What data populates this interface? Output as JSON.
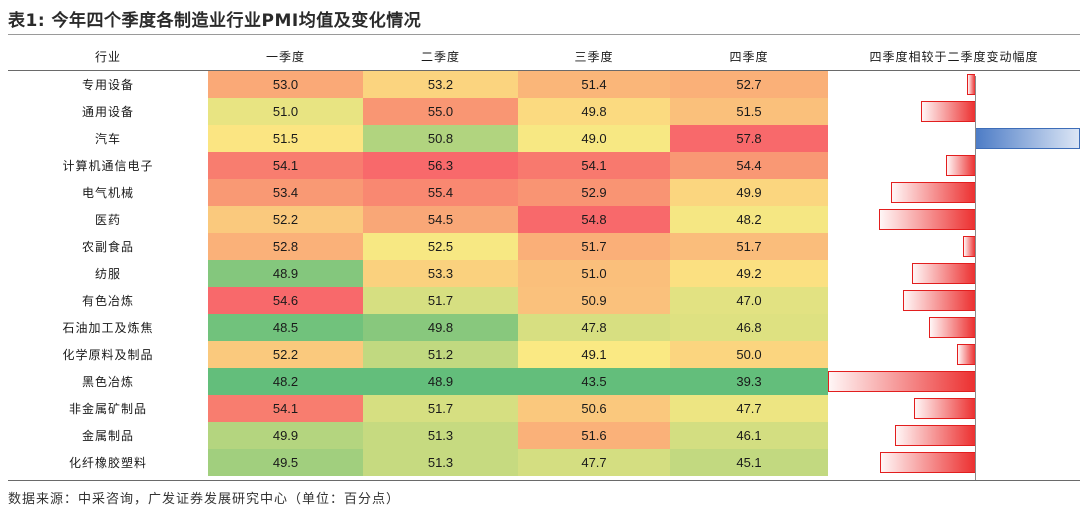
{
  "title": "表1:  今年四个季度各制造业行业PMI均值及变化情况",
  "headers": [
    "行业",
    "一季度",
    "二季度",
    "三季度",
    "四季度",
    "四季度相较于二季度变动幅度"
  ],
  "rows": [
    {
      "industry": "专用设备",
      "q1": "53.0",
      "q2": "53.2",
      "q3": "51.4",
      "q4": "52.7",
      "change": -0.5
    },
    {
      "industry": "通用设备",
      "q1": "51.0",
      "q2": "55.0",
      "q3": "49.8",
      "q4": "51.5",
      "change": -3.5
    },
    {
      "industry": "汽车",
      "q1": "51.5",
      "q2": "50.8",
      "q3": "49.0",
      "q4": "57.8",
      "change": 7.0
    },
    {
      "industry": "计算机通信电子",
      "q1": "54.1",
      "q2": "56.3",
      "q3": "54.1",
      "q4": "54.4",
      "change": -1.9
    },
    {
      "industry": "电气机械",
      "q1": "53.4",
      "q2": "55.4",
      "q3": "52.9",
      "q4": "49.9",
      "change": -5.5
    },
    {
      "industry": "医药",
      "q1": "52.2",
      "q2": "54.5",
      "q3": "54.8",
      "q4": "48.2",
      "change": -6.3
    },
    {
      "industry": "农副食品",
      "q1": "52.8",
      "q2": "52.5",
      "q3": "51.7",
      "q4": "51.7",
      "change": -0.8
    },
    {
      "industry": "纺服",
      "q1": "48.9",
      "q2": "53.3",
      "q3": "51.0",
      "q4": "49.2",
      "change": -4.1
    },
    {
      "industry": "有色冶炼",
      "q1": "54.6",
      "q2": "51.7",
      "q3": "50.9",
      "q4": "47.0",
      "change": -4.7
    },
    {
      "industry": "石油加工及炼焦",
      "q1": "48.5",
      "q2": "49.8",
      "q3": "47.8",
      "q4": "46.8",
      "change": -3.0
    },
    {
      "industry": "化学原料及制品",
      "q1": "52.2",
      "q2": "51.2",
      "q3": "49.1",
      "q4": "50.0",
      "change": -1.2
    },
    {
      "industry": "黑色冶炼",
      "q1": "48.2",
      "q2": "48.9",
      "q3": "43.5",
      "q4": "39.3",
      "change": -9.6
    },
    {
      "industry": "非金属矿制品",
      "q1": "54.1",
      "q2": "51.7",
      "q3": "50.6",
      "q4": "47.7",
      "change": -4.0
    },
    {
      "industry": "金属制品",
      "q1": "49.9",
      "q2": "51.3",
      "q3": "51.6",
      "q4": "46.1",
      "change": -5.2
    },
    {
      "industry": "化纤橡胶塑料",
      "q1": "49.5",
      "q2": "51.3",
      "q3": "47.7",
      "q4": "45.1",
      "change": -6.2
    }
  ],
  "colors": {
    "heat_green": "#63be7b",
    "heat_yellow": "#fbe983",
    "heat_red": "#f8696b",
    "bar_negative": "#e21e1e",
    "bar_positive": "#3d6db8"
  },
  "source": "数据来源：中采咨询，广发证券发展研究中心（单位：百分点）"
}
